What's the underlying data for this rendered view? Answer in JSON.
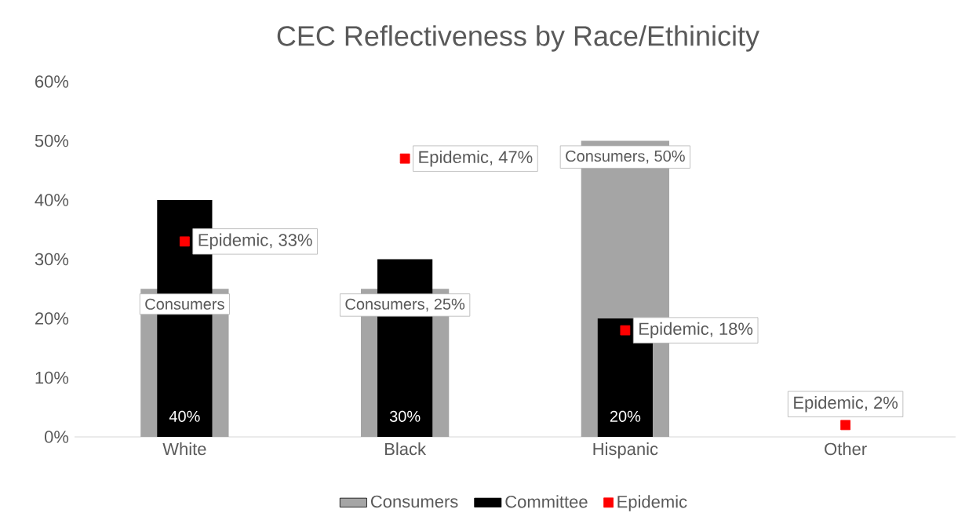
{
  "chart_data": {
    "type": "bar",
    "title": "CEC Reflectiveness by Race/Ethinicity",
    "categories": [
      "White",
      "Black",
      "Hispanic",
      "Other"
    ],
    "series": [
      {
        "name": "Consumers",
        "color": "#a5a5a5",
        "values": [
          25,
          25,
          50,
          null
        ],
        "value_labels": [
          "Consumers",
          "Consumers, 25%",
          "Consumers, 50%",
          null
        ]
      },
      {
        "name": "Committee",
        "color": "#000000",
        "values": [
          40,
          30,
          20,
          null
        ],
        "value_labels": [
          "40%",
          "30%",
          "20%",
          null
        ]
      },
      {
        "name": "Epidemic",
        "type": "scatter",
        "color": "#ff0000",
        "values": [
          33,
          47,
          18,
          2
        ],
        "value_labels": [
          "Epidemic, 33%",
          "Epidemic, 47%",
          "Epidemic, 18%",
          "Epidemic, 2%"
        ]
      }
    ],
    "ylim": [
      0,
      60
    ],
    "yticks": [
      {
        "value": 0,
        "label": "0%"
      },
      {
        "value": 10,
        "label": "10%"
      },
      {
        "value": 20,
        "label": "20%"
      },
      {
        "value": 30,
        "label": "30%"
      },
      {
        "value": 40,
        "label": "40%"
      },
      {
        "value": 50,
        "label": "50%"
      },
      {
        "value": 60,
        "label": "60%"
      }
    ],
    "legend": "bottom"
  }
}
